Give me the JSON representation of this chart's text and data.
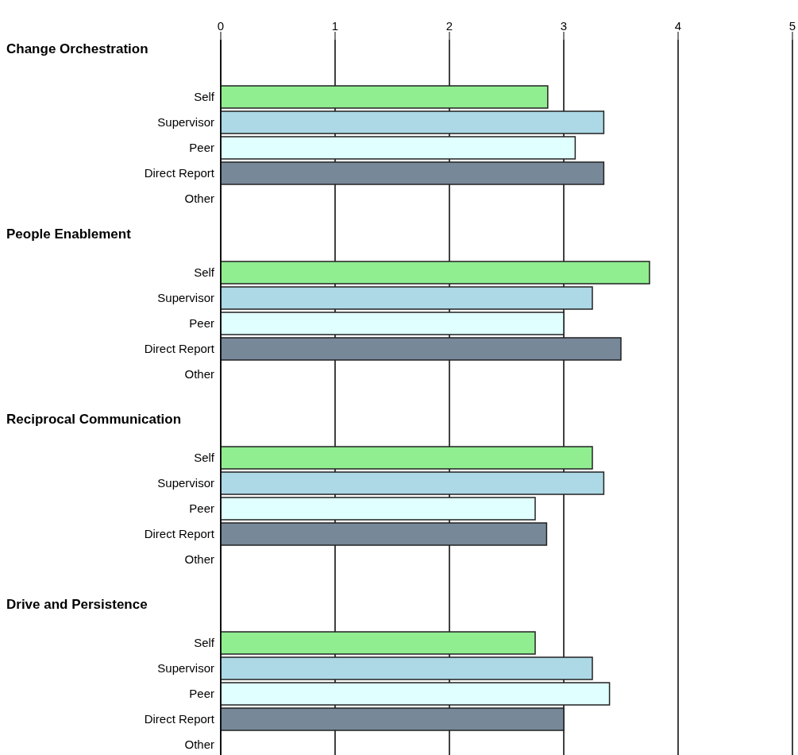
{
  "chart_data": [
    {
      "type": "bar",
      "orientation": "horizontal",
      "title": "Change Orchestration",
      "categories": [
        "Self",
        "Supervisor",
        "Peer",
        "Direct Report",
        "Other"
      ],
      "values": [
        2.86,
        3.35,
        3.1,
        3.35,
        null
      ],
      "colors": [
        "#90ee90",
        "#add8e6",
        "#e0ffff",
        "#778899",
        "#778899"
      ],
      "xlim": [
        0,
        5
      ],
      "xticks": [
        0,
        1,
        2,
        3,
        4,
        5
      ],
      "grid": "x"
    },
    {
      "type": "bar",
      "orientation": "horizontal",
      "title": "People Enablement",
      "categories": [
        "Self",
        "Supervisor",
        "Peer",
        "Direct Report",
        "Other"
      ],
      "values": [
        3.75,
        3.25,
        3.0,
        3.5,
        null
      ],
      "colors": [
        "#90ee90",
        "#add8e6",
        "#e0ffff",
        "#778899",
        "#778899"
      ],
      "xlim": [
        0,
        5
      ],
      "xticks": [
        0,
        1,
        2,
        3,
        4,
        5
      ],
      "grid": "x",
      "tick_labels": "y"
    },
    {
      "type": "bar",
      "orientation": "horizontal",
      "title": "Reciprocal Communication",
      "categories": [
        "Self",
        "Supervisor",
        "Peer",
        "Direct Report",
        "Other"
      ],
      "values": [
        3.25,
        3.35,
        2.75,
        2.85,
        null
      ],
      "colors": [
        "#90ee90",
        "#add8e6",
        "#e0ffff",
        "#778899",
        "#778899"
      ],
      "xlim": [
        0,
        5
      ],
      "xticks": [
        0,
        1,
        2,
        3,
        4,
        5
      ],
      "grid": "x",
      "tick_labels": "y"
    },
    {
      "type": "bar",
      "orientation": "horizontal",
      "title": "Drive and Persistence",
      "categories": [
        "Self",
        "Supervisor",
        "Peer",
        "Direct Report",
        "Other"
      ],
      "values": [
        2.75,
        3.25,
        3.4,
        3.0,
        null
      ],
      "colors": [
        "#90ee90",
        "#add8e6",
        "#e0ffff",
        "#778899",
        "#778899"
      ],
      "xlim": [
        0,
        5
      ],
      "xticks": [
        0,
        1,
        2,
        3,
        4,
        5
      ],
      "grid": "x",
      "tick_labels": "y"
    }
  ]
}
